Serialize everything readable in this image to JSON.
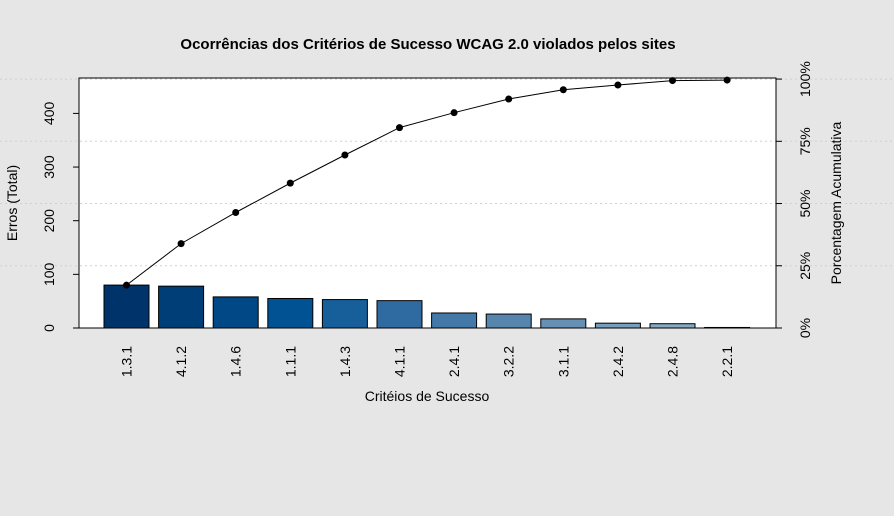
{
  "chart_data": {
    "type": "bar",
    "title": "Ocorrências dos Critérios de Sucesso WCAG 2.0 violados pelos sites",
    "xlabel": "Critéios de Sucesso",
    "ylabel": "Erros (Total)",
    "y2label": "Porcentagem Acumulativa",
    "categories": [
      "1.3.1",
      "4.1.2",
      "1.4.6",
      "1.1.1",
      "1.4.3",
      "4.1.1",
      "2.4.1",
      "3.2.2",
      "3.1.1",
      "2.4.2",
      "2.4.8",
      "2.2.1"
    ],
    "values": [
      80,
      78,
      58,
      55,
      53,
      51,
      28,
      26,
      17,
      9,
      8,
      1
    ],
    "cumulative_percent": [
      17.2,
      33.9,
      46.4,
      58.2,
      69.5,
      80.5,
      86.5,
      92.0,
      95.7,
      97.6,
      99.4,
      99.6
    ],
    "ylim": [
      0,
      466
    ],
    "y_ticks": [
      0,
      100,
      200,
      300,
      400
    ],
    "y2_ticks": [
      "0%",
      "25%",
      "50%",
      "75%",
      "100%"
    ],
    "grid": "horizontal dotted at percent ticks",
    "bar_colors": [
      "#00336a",
      "#003e78",
      "#004886",
      "#005293",
      "#175f9a",
      "#2f6ba1",
      "#4478a8",
      "#5685ae",
      "#6691b5",
      "#769dbc",
      "#86a9c3",
      "#96b4ca"
    ]
  }
}
